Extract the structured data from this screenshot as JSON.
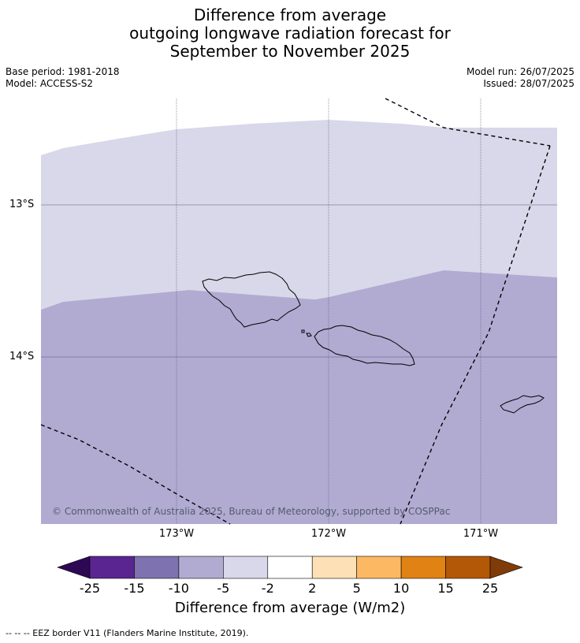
{
  "title": {
    "line1": "Difference from average",
    "line2": "outgoing longwave radiation forecast for",
    "line3": "September to November 2025"
  },
  "meta": {
    "base_period": "Base period: 1981-2018",
    "model": "Model: ACCESS-S2",
    "model_run": "Model run: 26/07/2025",
    "issued": "Issued: 28/07/2025"
  },
  "map": {
    "lat_labels": [
      "13°S",
      "14°S"
    ],
    "lon_labels": [
      "173°W",
      "172°W",
      "171°W"
    ],
    "copyright": "© Commonwealth of Australia 2025, Bureau of Meteorology, supported by COSPPac",
    "fill_colors": {
      "band_minus5_to_minus2": "#d8d8ea",
      "band_minus10_to_minus5": "#b1abd2"
    }
  },
  "colorbar": {
    "ticks": [
      "-25",
      "-15",
      "-10",
      "-5",
      "-2",
      "2",
      "5",
      "10",
      "15",
      "25"
    ],
    "colors": [
      "#2e0854",
      "#5a2590",
      "#7f72b0",
      "#b1abd2",
      "#d8d8ea",
      "#ffffff",
      "#fee0b6",
      "#fdb863",
      "#e08214",
      "#b35806",
      "#7f3b08"
    ],
    "label": "Difference from average (W/m2)"
  },
  "footnote": "--  --  -- EEZ border V11 (Flanders Marine Institute, 2019)."
}
